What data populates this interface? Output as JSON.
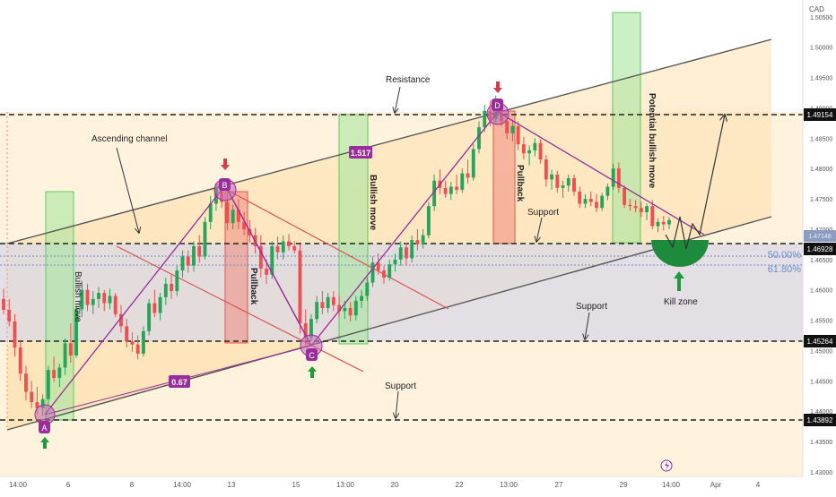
{
  "chart_data": {
    "type": "candlestick",
    "instrument_currency": "CAD",
    "y_axis": {
      "ticks": [
        "1.50500",
        "1.50000",
        "1.49500",
        "1.49000",
        "1.48500",
        "1.48000",
        "1.47500",
        "1.47000",
        "1.46500",
        "1.46000",
        "1.45500",
        "1.45000",
        "1.44500",
        "1.44000",
        "1.43500",
        "1.43000"
      ],
      "ylim": [
        1.43,
        1.506
      ]
    },
    "x_axis": {
      "ticks": [
        "14:00",
        "6",
        "8",
        "14:00",
        "13",
        "15",
        "13:00",
        "20",
        "22",
        "13:00",
        "27",
        "29",
        "14:00",
        "Apr",
        "4"
      ]
    },
    "price_levels": [
      {
        "label": "1.49154",
        "value": 1.49154
      },
      {
        "label": "1.46928",
        "value": 1.46928
      },
      {
        "label": "1.45264",
        "value": 1.45264
      },
      {
        "label": "1.43892",
        "value": 1.43892
      }
    ],
    "fib_labels": [
      "50.00%",
      "61.80%"
    ],
    "last_price_tag": "1.47148",
    "annotations": {
      "ascending_channel": "Ascending channel",
      "resistance": "Resistance",
      "support_1": "Support",
      "support_2": "Support",
      "support_3": "Support",
      "bullish_move_left": "Bullish move",
      "bullish_move_mid": "Bullish move",
      "potential_bullish_move": "Potential bullish move",
      "pullback_1": "Pullback",
      "pullback_2": "Pullback",
      "kill_zone": "Kill zone",
      "ratio_067": "0.67",
      "ratio_1517": "1.517"
    },
    "points": [
      "A",
      "B",
      "C",
      "D"
    ],
    "candles": [
      [
        1.4585,
        1.4602,
        1.456,
        1.4567
      ],
      [
        1.4567,
        1.4585,
        1.454,
        1.4548
      ],
      [
        1.4548,
        1.456,
        1.449,
        1.4505
      ],
      [
        1.4505,
        1.4515,
        1.445,
        1.4462
      ],
      [
        1.4462,
        1.4475,
        1.4418,
        1.4432
      ],
      [
        1.4432,
        1.445,
        1.4405,
        1.4415
      ],
      [
        1.4415,
        1.444,
        1.4395,
        1.4405
      ],
      [
        1.4405,
        1.4428,
        1.4392,
        1.442
      ],
      [
        1.442,
        1.4475,
        1.441,
        1.4468
      ],
      [
        1.4468,
        1.449,
        1.4448,
        1.4455
      ],
      [
        1.4455,
        1.4478,
        1.444,
        1.4472
      ],
      [
        1.4472,
        1.452,
        1.446,
        1.4512
      ],
      [
        1.4512,
        1.4545,
        1.448,
        1.4492
      ],
      [
        1.4492,
        1.4575,
        1.4488,
        1.4568
      ],
      [
        1.4568,
        1.4615,
        1.4555,
        1.46
      ],
      [
        1.46,
        1.461,
        1.4565,
        1.4575
      ],
      [
        1.4575,
        1.4598,
        1.456,
        1.4585
      ],
      [
        1.4585,
        1.4605,
        1.457,
        1.4595
      ],
      [
        1.4595,
        1.46,
        1.4565,
        1.4578
      ],
      [
        1.4578,
        1.4602,
        1.4568,
        1.459
      ],
      [
        1.459,
        1.4595,
        1.4555,
        1.456
      ],
      [
        1.456,
        1.4575,
        1.453,
        1.454
      ],
      [
        1.454,
        1.4552,
        1.4505,
        1.4515
      ],
      [
        1.4515,
        1.453,
        1.4498,
        1.451
      ],
      [
        1.451,
        1.4525,
        1.4485,
        1.4495
      ],
      [
        1.4495,
        1.454,
        1.449,
        1.4532
      ],
      [
        1.4532,
        1.4585,
        1.4525,
        1.4578
      ],
      [
        1.4578,
        1.46,
        1.4555,
        1.4562
      ],
      [
        1.4562,
        1.4595,
        1.455,
        1.4588
      ],
      [
        1.4588,
        1.462,
        1.4575,
        1.461
      ],
      [
        1.461,
        1.4625,
        1.4585,
        1.4598
      ],
      [
        1.4598,
        1.464,
        1.459,
        1.4632
      ],
      [
        1.4632,
        1.4665,
        1.462,
        1.4655
      ],
      [
        1.4655,
        1.4665,
        1.4628,
        1.464
      ],
      [
        1.464,
        1.468,
        1.463,
        1.4672
      ],
      [
        1.4672,
        1.469,
        1.4645,
        1.4655
      ],
      [
        1.4655,
        1.472,
        1.465,
        1.4712
      ],
      [
        1.4712,
        1.4755,
        1.47,
        1.4742
      ],
      [
        1.4742,
        1.4775,
        1.473,
        1.4768
      ],
      [
        1.4768,
        1.478,
        1.4735,
        1.4745
      ],
      [
        1.4745,
        1.476,
        1.4698,
        1.471
      ],
      [
        1.471,
        1.474,
        1.47,
        1.4732
      ],
      [
        1.4732,
        1.475,
        1.47,
        1.4712
      ],
      [
        1.4712,
        1.4728,
        1.469,
        1.47
      ],
      [
        1.47,
        1.4715,
        1.4678,
        1.469
      ],
      [
        1.469,
        1.4702,
        1.466,
        1.4672
      ],
      [
        1.4672,
        1.469,
        1.462,
        1.4635
      ],
      [
        1.4635,
        1.465,
        1.461,
        1.4625
      ],
      [
        1.4625,
        1.468,
        1.4618,
        1.4672
      ],
      [
        1.4672,
        1.4688,
        1.465,
        1.4662
      ],
      [
        1.4662,
        1.469,
        1.465,
        1.468
      ],
      [
        1.468,
        1.4692,
        1.4665,
        1.4672
      ],
      [
        1.4672,
        1.468,
        1.466,
        1.4665
      ],
      [
        1.4665,
        1.4675,
        1.4528,
        1.4545
      ],
      [
        1.4545,
        1.4568,
        1.4508,
        1.4522
      ],
      [
        1.4522,
        1.456,
        1.4515,
        1.4552
      ],
      [
        1.4552,
        1.459,
        1.4545,
        1.458
      ],
      [
        1.458,
        1.4598,
        1.456,
        1.457
      ],
      [
        1.457,
        1.4595,
        1.4562,
        1.4588
      ],
      [
        1.4588,
        1.4598,
        1.4565,
        1.4575
      ],
      [
        1.4575,
        1.459,
        1.4555,
        1.4565
      ],
      [
        1.4565,
        1.4582,
        1.4552,
        1.457
      ],
      [
        1.457,
        1.458,
        1.4548,
        1.4558
      ],
      [
        1.4558,
        1.459,
        1.455,
        1.4582
      ],
      [
        1.4582,
        1.46,
        1.457,
        1.459
      ],
      [
        1.459,
        1.462,
        1.4582,
        1.4612
      ],
      [
        1.4612,
        1.4655,
        1.4605,
        1.4645
      ],
      [
        1.4645,
        1.466,
        1.4625,
        1.4632
      ],
      [
        1.4632,
        1.464,
        1.461,
        1.462
      ],
      [
        1.462,
        1.465,
        1.4615,
        1.4642
      ],
      [
        1.4642,
        1.466,
        1.463,
        1.465
      ],
      [
        1.465,
        1.468,
        1.464,
        1.467
      ],
      [
        1.467,
        1.4678,
        1.464,
        1.4652
      ],
      [
        1.4652,
        1.469,
        1.4645,
        1.4682
      ],
      [
        1.4682,
        1.47,
        1.4665,
        1.4675
      ],
      [
        1.4675,
        1.47,
        1.4668,
        1.469
      ],
      [
        1.469,
        1.4745,
        1.4685,
        1.4738
      ],
      [
        1.4738,
        1.479,
        1.473,
        1.478
      ],
      [
        1.478,
        1.4798,
        1.4758,
        1.4768
      ],
      [
        1.4768,
        1.478,
        1.4752,
        1.4758
      ],
      [
        1.4758,
        1.4778,
        1.4748,
        1.477
      ],
      [
        1.477,
        1.479,
        1.4758,
        1.4765
      ],
      [
        1.4765,
        1.48,
        1.476,
        1.4792
      ],
      [
        1.4792,
        1.4815,
        1.4775,
        1.4785
      ],
      [
        1.4785,
        1.484,
        1.478,
        1.4832
      ],
      [
        1.4832,
        1.4878,
        1.4825,
        1.4868
      ],
      [
        1.4868,
        1.4905,
        1.486,
        1.4895
      ],
      [
        1.4895,
        1.4912,
        1.487,
        1.4882
      ],
      [
        1.4882,
        1.492,
        1.4875,
        1.491
      ],
      [
        1.491,
        1.4915,
        1.487,
        1.4878
      ],
      [
        1.4878,
        1.4885,
        1.4848,
        1.4858
      ],
      [
        1.4858,
        1.488,
        1.4845,
        1.487
      ],
      [
        1.487,
        1.4878,
        1.483,
        1.484
      ],
      [
        1.484,
        1.4852,
        1.4815,
        1.4825
      ],
      [
        1.4825,
        1.4838,
        1.4805,
        1.483
      ],
      [
        1.483,
        1.485,
        1.482,
        1.4842
      ],
      [
        1.4842,
        1.4848,
        1.4808,
        1.4815
      ],
      [
        1.4815,
        1.4822,
        1.477,
        1.4782
      ],
      [
        1.4782,
        1.4798,
        1.4765,
        1.479
      ],
      [
        1.479,
        1.4796,
        1.476,
        1.4768
      ],
      [
        1.4768,
        1.478,
        1.4752,
        1.4772
      ],
      [
        1.4772,
        1.479,
        1.4762,
        1.4784
      ],
      [
        1.4784,
        1.479,
        1.4755,
        1.4762
      ],
      [
        1.4762,
        1.477,
        1.4735,
        1.4742
      ],
      [
        1.4742,
        1.4758,
        1.4735,
        1.475
      ],
      [
        1.475,
        1.4762,
        1.4738,
        1.4745
      ],
      [
        1.4745,
        1.4758,
        1.4728,
        1.4735
      ],
      [
        1.4735,
        1.476,
        1.473,
        1.4755
      ],
      [
        1.4755,
        1.4775,
        1.4748,
        1.477
      ],
      [
        1.477,
        1.4808,
        1.4765,
        1.48
      ],
      [
        1.48,
        1.481,
        1.476,
        1.4768
      ],
      [
        1.4768,
        1.4772,
        1.4735,
        1.474
      ],
      [
        1.474,
        1.475,
        1.473,
        1.4738
      ],
      [
        1.4738,
        1.4748,
        1.4728,
        1.4735
      ],
      [
        1.4735,
        1.4745,
        1.472,
        1.4728
      ],
      [
        1.4728,
        1.4742,
        1.4715,
        1.4738
      ],
      [
        1.4738,
        1.4748,
        1.47,
        1.4705
      ],
      [
        1.4705,
        1.4718,
        1.4695,
        1.4712
      ],
      [
        1.4712,
        1.4722,
        1.4698,
        1.4708
      ],
      [
        1.4708,
        1.472,
        1.47,
        1.4715
      ]
    ]
  }
}
